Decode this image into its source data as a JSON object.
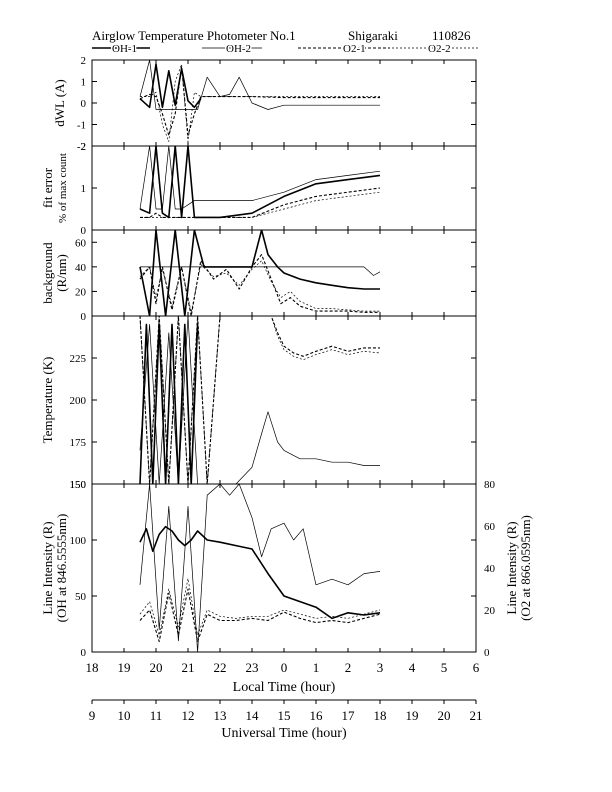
{
  "header": {
    "title": "Airglow Temperature Photometer No.1",
    "site": "Shigaraki",
    "date_code": "110826"
  },
  "legend": [
    {
      "key": "oh1",
      "label": "OH-1"
    },
    {
      "key": "oh2",
      "label": "OH-2"
    },
    {
      "key": "o21",
      "label": "O2-1"
    },
    {
      "key": "o22",
      "label": "O2-2"
    }
  ],
  "axes": {
    "local_time_label": "Local Time (hour)",
    "local_time_ticks": [
      "18",
      "19",
      "20",
      "21",
      "22",
      "23",
      "0",
      "1",
      "2",
      "3",
      "4",
      "5",
      "6"
    ],
    "ut_label": "Universal Time (hour)",
    "ut_ticks": [
      "9",
      "10",
      "11",
      "12",
      "13",
      "14",
      "15",
      "16",
      "17",
      "18",
      "19",
      "20",
      "21"
    ]
  },
  "chart_data": [
    {
      "type": "line",
      "ylabel": "dWL (A)",
      "ylim": [
        -2,
        2
      ],
      "yticks": [
        "2",
        "1",
        "0",
        "-1",
        "-2"
      ],
      "x_units": "universal time (hour)",
      "series": [
        {
          "name": "OH-1",
          "x": [
            10.5,
            10.8,
            11.0,
            11.2,
            11.4,
            11.6,
            11.8,
            12.0,
            12.2,
            12.4
          ],
          "y": [
            0.2,
            -0.2,
            1.8,
            -0.2,
            1.5,
            -0.1,
            1.6,
            0.1,
            -0.2,
            0.2
          ]
        },
        {
          "name": "OH-2",
          "x": [
            10.5,
            10.8,
            11.0,
            11.3,
            11.6,
            12.0,
            12.3,
            12.6,
            13.0,
            13.3,
            13.6,
            14.0,
            14.5,
            15.0,
            16.0,
            17.0,
            18.0
          ],
          "y": [
            0.3,
            2.0,
            -0.3,
            -0.3,
            -0.3,
            -0.3,
            -0.3,
            1.2,
            0.3,
            0.4,
            1.2,
            0.0,
            -0.3,
            -0.1,
            -0.1,
            -0.1,
            -0.1
          ]
        },
        {
          "name": "O2-1",
          "x": [
            10.5,
            10.8,
            11.0,
            11.2,
            11.4,
            11.6,
            11.8,
            12.0,
            12.2,
            12.4,
            13.0,
            14.0,
            15.0,
            16.0,
            17.0,
            18.0
          ],
          "y": [
            0.2,
            0.4,
            0.3,
            -0.5,
            -1.5,
            -0.5,
            1.7,
            -1.5,
            -0.5,
            0.3,
            0.3,
            0.3,
            0.25,
            0.25,
            0.25,
            0.25
          ]
        },
        {
          "name": "O2-2",
          "x": [
            10.5,
            10.8,
            11.0,
            11.2,
            11.4,
            11.6,
            11.8,
            12.0,
            12.2,
            12.4,
            13.0,
            14.0,
            15.0,
            16.0,
            17.0,
            18.0
          ],
          "y": [
            0.3,
            0.3,
            0.5,
            -1.0,
            -1.8,
            1.0,
            1.8,
            -1.8,
            0.5,
            0.3,
            0.3,
            0.3,
            0.3,
            0.3,
            0.3,
            0.3
          ]
        }
      ]
    },
    {
      "type": "line",
      "ylabel": "fit error",
      "ylabel2": "% of max count",
      "ylim": [
        0,
        2
      ],
      "yticks": [
        "2",
        "1",
        "0"
      ],
      "x_units": "universal time (hour)",
      "series": [
        {
          "name": "OH-1",
          "x": [
            10.5,
            10.8,
            11.0,
            11.2,
            11.4,
            11.6,
            11.8,
            12.0,
            12.2,
            12.4,
            13.0,
            14.0,
            15.0,
            16.0,
            17.0,
            18.0
          ],
          "y": [
            0.5,
            0.4,
            2.0,
            0.4,
            0.3,
            2.0,
            0.3,
            2.0,
            0.3,
            0.3,
            0.3,
            0.4,
            0.8,
            1.1,
            1.2,
            1.3
          ]
        },
        {
          "name": "OH-2",
          "x": [
            10.5,
            10.8,
            11.0,
            11.2,
            11.4,
            11.6,
            11.8,
            12.0,
            12.2,
            12.4,
            13.0,
            14.0,
            15.0,
            16.0,
            17.0,
            18.0
          ],
          "y": [
            0.5,
            2.0,
            0.5,
            0.5,
            2.0,
            0.5,
            0.5,
            0.6,
            0.7,
            0.7,
            0.7,
            0.7,
            0.9,
            1.2,
            1.3,
            1.4
          ]
        },
        {
          "name": "O2-1",
          "x": [
            10.5,
            10.8,
            11.0,
            11.2,
            11.4,
            11.6,
            11.8,
            12.0,
            12.2,
            12.4,
            13.0,
            14.0,
            15.0,
            16.0,
            17.0,
            18.0
          ],
          "y": [
            0.3,
            0.3,
            0.4,
            0.3,
            0.3,
            0.3,
            0.3,
            0.3,
            0.3,
            0.3,
            0.3,
            0.3,
            0.6,
            0.8,
            0.9,
            1.0
          ]
        },
        {
          "name": "O2-2",
          "x": [
            10.5,
            10.8,
            11.0,
            11.2,
            11.4,
            11.6,
            11.8,
            12.0,
            12.2,
            12.4,
            13.0,
            14.0,
            15.0,
            16.0,
            17.0,
            18.0
          ],
          "y": [
            0.3,
            0.3,
            0.3,
            0.3,
            0.3,
            0.3,
            0.3,
            0.3,
            0.3,
            0.3,
            0.3,
            0.3,
            0.5,
            0.7,
            0.8,
            0.9
          ]
        }
      ]
    },
    {
      "type": "line",
      "ylabel": "background",
      "ylabel2": "(R/nm)",
      "ylim": [
        0,
        70
      ],
      "yticks": [
        "60",
        "40",
        "20",
        "0"
      ],
      "x_units": "universal time (hour)",
      "series": [
        {
          "name": "OH-1",
          "x": [
            10.5,
            10.8,
            11.0,
            11.3,
            11.6,
            11.9,
            12.2,
            12.5,
            13.0,
            14.0,
            14.3,
            14.5,
            14.8,
            15.0,
            15.5,
            16.0,
            16.5,
            17.0,
            17.5,
            18.0
          ],
          "y": [
            40,
            0,
            70,
            0,
            70,
            0,
            70,
            40,
            40,
            40,
            70,
            50,
            40,
            35,
            30,
            27,
            25,
            23,
            22,
            22
          ]
        },
        {
          "name": "OH-2",
          "x": [
            10.5,
            11.0,
            12.0,
            13.0,
            14.0,
            14.5,
            15.0,
            15.5,
            16.0,
            16.5,
            17.0,
            17.5,
            17.8,
            18.0
          ],
          "y": [
            40,
            40,
            40,
            40,
            40,
            40,
            40,
            40,
            40,
            40,
            40,
            40,
            33,
            36
          ]
        },
        {
          "name": "O2-1",
          "x": [
            10.5,
            10.8,
            11.0,
            11.2,
            11.5,
            11.8,
            12.1,
            12.4,
            12.8,
            13.2,
            13.6,
            14.0,
            14.3,
            14.6,
            14.9,
            15.2,
            15.5,
            16.0,
            16.5,
            17.0,
            17.5,
            18.0
          ],
          "y": [
            30,
            40,
            10,
            40,
            5,
            40,
            0,
            45,
            30,
            38,
            22,
            40,
            50,
            30,
            10,
            15,
            8,
            4,
            4,
            4,
            3,
            3
          ]
        },
        {
          "name": "O2-2",
          "x": [
            10.5,
            10.8,
            11.0,
            11.2,
            11.5,
            11.8,
            12.1,
            12.4,
            12.8,
            13.2,
            13.6,
            14.0,
            14.3,
            14.6,
            14.9,
            15.2,
            15.5,
            16.0,
            16.5,
            17.0,
            17.5,
            18.0
          ],
          "y": [
            32,
            40,
            15,
            38,
            8,
            40,
            3,
            42,
            32,
            35,
            25,
            38,
            45,
            28,
            15,
            20,
            12,
            6,
            6,
            5,
            4,
            4
          ]
        }
      ]
    },
    {
      "type": "line",
      "ylabel": "Temperature (K)",
      "ylim": [
        150,
        250
      ],
      "yticks": [
        "225",
        "200",
        "175",
        "150"
      ],
      "x_units": "universal time (hour)",
      "series": [
        {
          "name": "OH-1",
          "x": [
            10.5,
            10.7,
            10.9,
            11.1,
            11.3,
            11.5,
            11.7,
            11.9,
            12.1,
            12.3
          ],
          "y": [
            150,
            245,
            150,
            245,
            150,
            245,
            150,
            245,
            150,
            245
          ]
        },
        {
          "name": "OH-2",
          "x": [
            10.5,
            10.8,
            11.1,
            11.4,
            11.7,
            12.0,
            12.3,
            12.6,
            13.0,
            13.5,
            14.0,
            14.3,
            14.5,
            14.8,
            15.0,
            15.5,
            16.0,
            16.5,
            17.0,
            17.5,
            18.0
          ],
          "y": [
            170,
            245,
            150,
            240,
            150,
            250,
            150,
            150,
            150,
            150,
            160,
            180,
            193,
            175,
            170,
            165,
            165,
            163,
            163,
            161,
            161
          ]
        },
        {
          "name": "O2-1",
          "x": [
            10.5,
            10.8,
            11.1,
            11.4,
            11.7,
            12.0,
            12.3,
            12.6,
            13.0,
            14.0,
            14.3,
            14.6,
            14.8,
            15.0,
            15.3,
            15.6,
            16.0,
            16.5,
            17.0,
            17.5,
            18.0
          ],
          "y": [
            250,
            150,
            250,
            150,
            250,
            150,
            250,
            150,
            250,
            250,
            250,
            250,
            240,
            232,
            228,
            226,
            229,
            232,
            229,
            231,
            231
          ]
        },
        {
          "name": "O2-2",
          "x": [
            10.5,
            10.8,
            11.1,
            11.4,
            11.7,
            12.0,
            12.3,
            12.6,
            13.0,
            14.0,
            14.3,
            14.6,
            14.8,
            15.0,
            15.3,
            15.6,
            16.0,
            16.5,
            17.0,
            17.5,
            18.0
          ],
          "y": [
            250,
            150,
            250,
            150,
            250,
            150,
            250,
            150,
            250,
            250,
            250,
            250,
            238,
            230,
            226,
            224,
            227,
            230,
            227,
            229,
            228
          ]
        }
      ]
    },
    {
      "type": "line",
      "ylabel": "Line Intensity (R)",
      "ylabel2": "(OH at 846.5555nm)",
      "y2label": "Line Intensity (R)",
      "y2label2": "(O2 at 866.0595nm)",
      "ylim": [
        0,
        150
      ],
      "yticks": [
        "150",
        "100",
        "50",
        "0"
      ],
      "y2lim": [
        0,
        80
      ],
      "y2ticks": [
        "80",
        "60",
        "40",
        "20",
        "0"
      ],
      "x_units": "universal time (hour)",
      "series": [
        {
          "name": "OH-1",
          "x": [
            10.5,
            10.7,
            10.9,
            11.1,
            11.3,
            11.5,
            11.7,
            11.9,
            12.1,
            12.3,
            12.6,
            13.0,
            13.5,
            14.0,
            14.5,
            15.0,
            15.5,
            16.0,
            16.5,
            17.0,
            17.5,
            18.0
          ],
          "y": [
            98,
            110,
            90,
            105,
            112,
            108,
            100,
            95,
            100,
            108,
            100,
            98,
            95,
            92,
            70,
            50,
            45,
            40,
            30,
            35,
            33,
            35
          ]
        },
        {
          "name": "OH-2",
          "x": [
            10.5,
            10.8,
            11.1,
            11.4,
            11.7,
            12.0,
            12.3,
            12.6,
            13.0,
            13.3,
            13.6,
            14.0,
            14.3,
            14.6,
            15.0,
            15.3,
            15.6,
            16.0,
            16.5,
            17.0,
            17.5,
            18.0
          ],
          "y": [
            60,
            150,
            20,
            130,
            10,
            130,
            0,
            140,
            150,
            140,
            150,
            120,
            85,
            110,
            115,
            100,
            110,
            60,
            65,
            60,
            70,
            72
          ]
        },
        {
          "name": "O2-1",
          "x": [
            10.5,
            10.8,
            11.1,
            11.4,
            11.7,
            12.0,
            12.3,
            12.6,
            13.0,
            13.5,
            14.0,
            14.5,
            15.0,
            15.5,
            16.0,
            16.5,
            17.0,
            17.5,
            18.0
          ],
          "y": [
            15,
            20,
            5,
            28,
            8,
            30,
            5,
            18,
            15,
            15,
            16,
            15,
            19,
            16,
            14,
            15,
            14,
            16,
            18
          ]
        },
        {
          "name": "O2-2",
          "x": [
            10.5,
            10.8,
            11.1,
            11.4,
            11.7,
            12.0,
            12.3,
            12.6,
            13.0,
            13.5,
            14.0,
            14.5,
            15.0,
            15.5,
            16.0,
            16.5,
            17.0,
            17.5,
            18.0
          ],
          "y": [
            18,
            24,
            8,
            30,
            12,
            35,
            8,
            20,
            17,
            16,
            17,
            17,
            20,
            18,
            16,
            17,
            16,
            18,
            20
          ]
        }
      ]
    }
  ]
}
